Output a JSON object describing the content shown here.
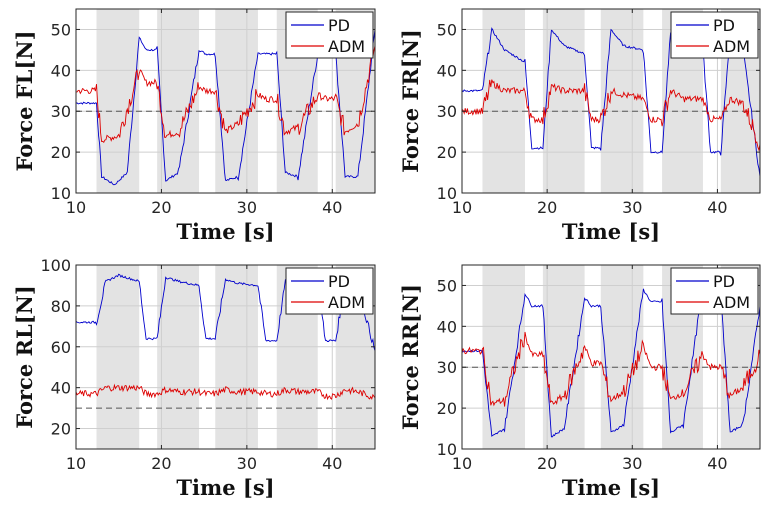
{
  "chart_data": [
    {
      "type": "line",
      "panel": "top-left",
      "title": "",
      "xlabel": "Time [s]",
      "ylabel": "Force FL[N]",
      "xlim": [
        10,
        45
      ],
      "ylim": [
        10,
        55
      ],
      "xticks": [
        "10",
        "20",
        "30",
        "40"
      ],
      "yticks": [
        "10",
        "20",
        "30",
        "40",
        "50"
      ],
      "grid": true,
      "legend": "top-right",
      "reference_line": 30,
      "shaded_intervals": [
        [
          12.4,
          17.4
        ],
        [
          19.5,
          24.4
        ],
        [
          26.3,
          31.3
        ],
        [
          33.5,
          38.3
        ],
        [
          40.4,
          45
        ]
      ],
      "series": [
        {
          "name": "PD",
          "color": "#0000cc",
          "x": [
            10,
            12.4,
            13,
            14.5,
            16,
            17.4,
            18.2,
            19.5,
            20.5,
            22,
            24.4,
            25.2,
            26.3,
            27.5,
            29,
            31.3,
            32.2,
            33.5,
            34.5,
            36,
            38.3,
            39.2,
            40.4,
            41.5,
            43,
            45
          ],
          "y": [
            32,
            32,
            14,
            12,
            15,
            48,
            45,
            45,
            13,
            15,
            45,
            44,
            44,
            13,
            14,
            44,
            44,
            44,
            15,
            14,
            44,
            44,
            44,
            14,
            14,
            50
          ]
        },
        {
          "name": "ADM",
          "color": "#dd0000",
          "x": [
            10,
            12.4,
            13,
            15,
            17.4,
            18.2,
            19.5,
            20.5,
            22,
            24.4,
            25.2,
            26.3,
            27.5,
            29,
            31.3,
            32.2,
            33.5,
            34.5,
            36,
            38.3,
            39.2,
            40.4,
            41.5,
            43,
            45
          ],
          "y": [
            35,
            35,
            23,
            24,
            40,
            37,
            37,
            24,
            25,
            36,
            35,
            35,
            25,
            27,
            34,
            33,
            33,
            25,
            26,
            34,
            33,
            33,
            25,
            27,
            46
          ]
        }
      ]
    },
    {
      "type": "line",
      "panel": "top-right",
      "title": "",
      "xlabel": "Time [s]",
      "ylabel": "Force FR[N]",
      "xlim": [
        10,
        45
      ],
      "ylim": [
        10,
        55
      ],
      "xticks": [
        "10",
        "20",
        "30",
        "40"
      ],
      "yticks": [
        "10",
        "20",
        "30",
        "40",
        "50"
      ],
      "grid": true,
      "legend": "top-right",
      "reference_line": 30,
      "shaded_intervals": [
        [
          12.4,
          17.4
        ],
        [
          19.5,
          24.4
        ],
        [
          26.3,
          31.3
        ],
        [
          33.5,
          38.3
        ],
        [
          40.4,
          45
        ]
      ],
      "series": [
        {
          "name": "PD",
          "color": "#0000cc",
          "x": [
            10,
            12.4,
            13.5,
            15,
            17.4,
            18.2,
            19.5,
            20.5,
            22,
            24.4,
            25.2,
            26.3,
            27.5,
            29,
            31.3,
            32.2,
            33.5,
            34.5,
            36,
            38.3,
            39.2,
            40.4,
            41.5,
            43,
            45
          ],
          "y": [
            35,
            35,
            50,
            45,
            42,
            21,
            21,
            50,
            46,
            44,
            21,
            21,
            50,
            46,
            45,
            20,
            20,
            49,
            46,
            45,
            20,
            20,
            49,
            45,
            14
          ]
        },
        {
          "name": "ADM",
          "color": "#dd0000",
          "x": [
            10,
            12.4,
            13.5,
            15,
            17.4,
            18.2,
            19.5,
            20.5,
            22,
            24.4,
            25.2,
            26.3,
            27.5,
            29,
            31.3,
            32.2,
            33.5,
            34.5,
            36,
            38.3,
            39.2,
            40.4,
            41.5,
            43,
            45
          ],
          "y": [
            30,
            30,
            37,
            35,
            35,
            28,
            28,
            36,
            35,
            35,
            28,
            28,
            35,
            34,
            33,
            28,
            28,
            35,
            33,
            33,
            28,
            28,
            33,
            32,
            22
          ]
        }
      ]
    },
    {
      "type": "line",
      "panel": "bottom-left",
      "title": "",
      "xlabel": "Time [s]",
      "ylabel": "Force RL[N]",
      "xlim": [
        10,
        45
      ],
      "ylim": [
        10,
        100
      ],
      "xticks": [
        "10",
        "20",
        "30",
        "40"
      ],
      "yticks": [
        "20",
        "40",
        "60",
        "80",
        "100"
      ],
      "grid": true,
      "legend": "top-right",
      "reference_line": 30,
      "shaded_intervals": [
        [
          12.4,
          17.4
        ],
        [
          19.5,
          24.4
        ],
        [
          26.3,
          31.3
        ],
        [
          33.5,
          38.3
        ],
        [
          40.4,
          45
        ]
      ],
      "series": [
        {
          "name": "PD",
          "color": "#0000cc",
          "x": [
            10,
            12.4,
            13.5,
            15,
            17.4,
            18.2,
            19.5,
            20.5,
            22,
            24.4,
            25.2,
            26.3,
            27.5,
            29,
            31.3,
            32.2,
            33.5,
            34.5,
            36,
            38.3,
            39.2,
            40.4,
            41.5,
            43,
            45
          ],
          "y": [
            72,
            72,
            92,
            95,
            92,
            64,
            64,
            94,
            92,
            90,
            64,
            64,
            93,
            91,
            90,
            63,
            63,
            92,
            91,
            90,
            63,
            63,
            92,
            89,
            58
          ]
        },
        {
          "name": "ADM",
          "color": "#dd0000",
          "x": [
            10,
            12.4,
            13.5,
            15,
            17.4,
            18.2,
            19.5,
            20.5,
            22,
            24.4,
            25.2,
            26.3,
            27.5,
            29,
            31.3,
            32.2,
            33.5,
            34.5,
            36,
            38.3,
            39.2,
            40.4,
            41.5,
            43,
            45
          ],
          "y": [
            37,
            37,
            40,
            40,
            40,
            37,
            37,
            39,
            38,
            38,
            37,
            37,
            39,
            38,
            38,
            37,
            37,
            39,
            38,
            38,
            36,
            36,
            39,
            38,
            35
          ]
        }
      ]
    },
    {
      "type": "line",
      "panel": "bottom-right",
      "title": "",
      "xlabel": "Time [s]",
      "ylabel": "Force RR[N]",
      "xlim": [
        10,
        45
      ],
      "ylim": [
        10,
        55
      ],
      "xticks": [
        "10",
        "20",
        "30",
        "40"
      ],
      "yticks": [
        "10",
        "20",
        "30",
        "40",
        "50"
      ],
      "grid": true,
      "legend": "top-right",
      "reference_line": 30,
      "shaded_intervals": [
        [
          12.4,
          17.4
        ],
        [
          19.5,
          24.4
        ],
        [
          26.3,
          31.3
        ],
        [
          33.5,
          38.3
        ],
        [
          40.4,
          45
        ]
      ],
      "series": [
        {
          "name": "PD",
          "color": "#0000cc",
          "x": [
            10,
            12.4,
            13.5,
            15,
            17.4,
            18.2,
            19.5,
            20.5,
            22,
            24.4,
            25.2,
            26.3,
            27.5,
            29,
            31.3,
            32.2,
            33.5,
            34.5,
            36,
            38.3,
            39.2,
            40.4,
            41.5,
            43,
            45
          ],
          "y": [
            34,
            34,
            13,
            15,
            48,
            45,
            45,
            13,
            15,
            47,
            45,
            45,
            14,
            16,
            49,
            46,
            46,
            14,
            16,
            50,
            47,
            47,
            14,
            16,
            45
          ]
        },
        {
          "name": "ADM",
          "color": "#dd0000",
          "x": [
            10,
            12.4,
            13.5,
            15,
            17.4,
            18.2,
            19.5,
            20.5,
            22,
            24.4,
            25.2,
            26.3,
            27.5,
            29,
            31.3,
            32.2,
            33.5,
            34.5,
            36,
            38.3,
            39.2,
            40.4,
            41.5,
            43,
            45
          ],
          "y": [
            34,
            34,
            21,
            22,
            38,
            33,
            33,
            21,
            23,
            35,
            31,
            31,
            22,
            24,
            35,
            30,
            30,
            22,
            24,
            33,
            30,
            30,
            23,
            25,
            33
          ]
        }
      ]
    }
  ]
}
